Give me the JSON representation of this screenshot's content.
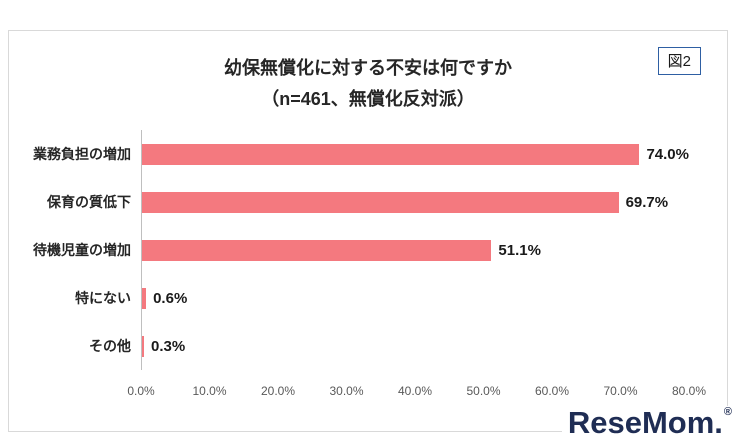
{
  "figure_label": "図2",
  "watermark": {
    "text": "ReseMom.",
    "mark": "®"
  },
  "chart_data": {
    "type": "bar",
    "orientation": "horizontal",
    "title_line1": "幼保無償化に対する不安は何ですか",
    "title_line2": "（n=461、無償化反対派）",
    "categories": [
      "業務負担の増加",
      "保育の質低下",
      "待機児童の増加",
      "特にない",
      "その他"
    ],
    "values": [
      74.0,
      69.7,
      51.1,
      0.6,
      0.3
    ],
    "value_labels": [
      "74.0%",
      "69.7%",
      "51.1%",
      "0.6%",
      "0.3%"
    ],
    "x_ticks": [
      "0.0%",
      "10.0%",
      "20.0%",
      "30.0%",
      "40.0%",
      "50.0%",
      "60.0%",
      "70.0%",
      "80.0%"
    ],
    "xlim": [
      0,
      80
    ],
    "grid": false,
    "legend": "none",
    "bar_color": "#f4797f"
  }
}
